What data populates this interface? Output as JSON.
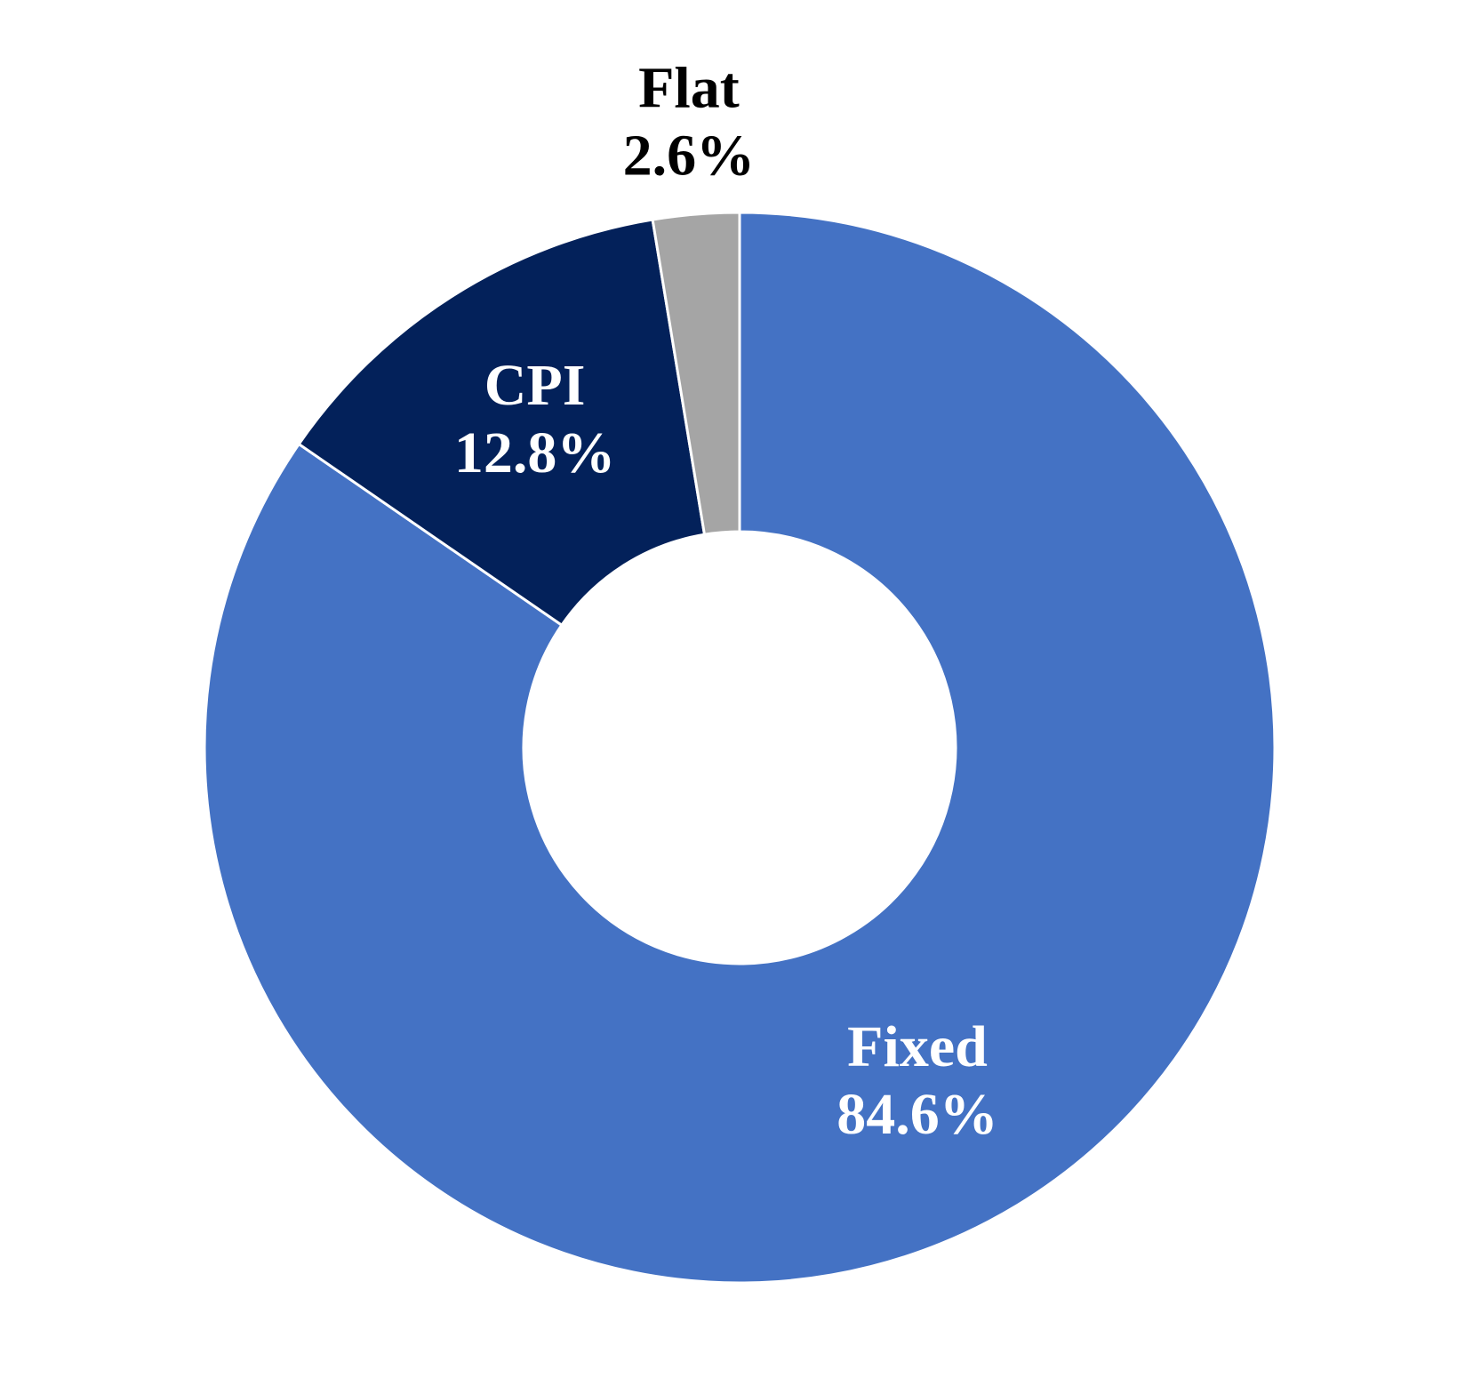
{
  "chart_data": {
    "type": "donut",
    "categories": [
      "Fixed",
      "CPI",
      "Flat"
    ],
    "values": [
      84.6,
      12.8,
      2.6
    ],
    "value_labels": [
      "84.6%",
      "12.8%",
      "2.6%"
    ],
    "colors": [
      "#4472c4",
      "#03215a",
      "#a5a5a5"
    ]
  }
}
